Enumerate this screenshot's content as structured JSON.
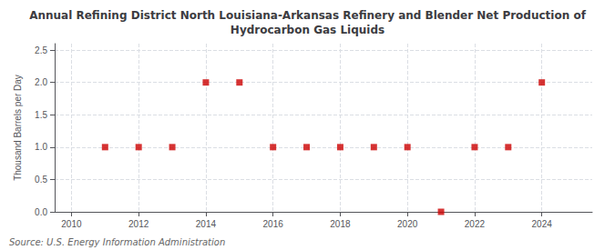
{
  "chart_data": {
    "type": "scatter",
    "title": "Annual Refining District North Louisiana-Arkansas Refinery and Blender Net Production of\nHydrocarbon Gas Liquids",
    "ylabel": "Thousand Barrels per Day",
    "source": "Source: U.S. Energy Information Administration",
    "x": [
      2011,
      2012,
      2013,
      2014,
      2015,
      2016,
      2017,
      2018,
      2019,
      2020,
      2021,
      2022,
      2023,
      2024
    ],
    "values": [
      1.0,
      1.0,
      1.0,
      2.0,
      2.0,
      1.0,
      1.0,
      1.0,
      1.0,
      1.0,
      0.0,
      1.0,
      1.0,
      2.0
    ],
    "color": "#cc0000",
    "marker": "square",
    "xlim": [
      2009.5,
      2025.5
    ],
    "xticks": [
      2010,
      2012,
      2014,
      2016,
      2018,
      2020,
      2022,
      2024
    ],
    "ylim": [
      0.0,
      2.6
    ],
    "yticks": [
      {
        "value": 0.0,
        "label": "0.0"
      },
      0.5,
      {
        "value": 1.0,
        "label": "1.0"
      },
      1.5,
      {
        "value": 2.0,
        "label": "2.0"
      },
      2.5
    ],
    "grid": true
  }
}
